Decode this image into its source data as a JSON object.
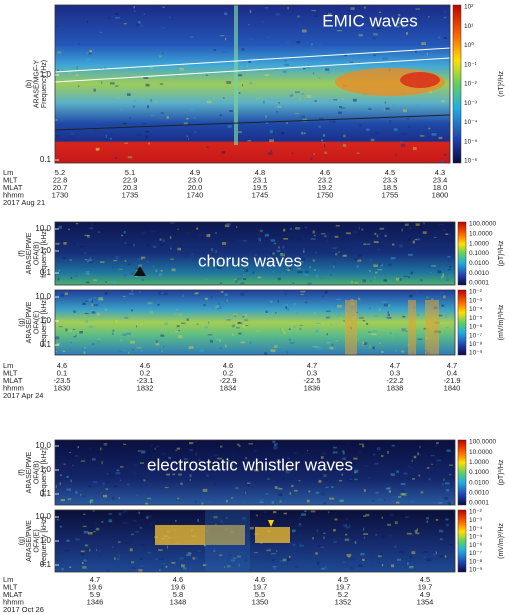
{
  "panels": [
    {
      "label_lines": [
        "(b)",
        "ARASE/MGF-Y",
        "Frequency (Hz)"
      ],
      "title": "EMIC waves",
      "yticks": [
        "1.0",
        "0.1"
      ],
      "colorbar": {
        "labels": [
          "10²",
          "10¹",
          "10⁰",
          "10⁻¹",
          "10⁻²",
          "10⁻³",
          "10⁻⁴",
          "10⁻⁵",
          "10⁻⁶"
        ],
        "unit": "(nT)²/Hz"
      }
    },
    {
      "label_lines": [
        "(f)",
        "ARASE/PWE",
        "OFA(B)",
        "frequency [kHz]"
      ],
      "title": "chorus waves",
      "yticks": [
        "10.0",
        "1.0",
        "0.1"
      ],
      "colorbar": {
        "labels": [
          "100.0000",
          "10.0000",
          "1.0000",
          "0.1000",
          "0.0100",
          "0.0010",
          "0.0001"
        ],
        "unit": "(pT)²/Hz"
      }
    },
    {
      "label_lines": [
        "(g)",
        "ARASE/PWE",
        "OFA(E)",
        "frequency [kHz]"
      ],
      "yticks": [
        "10.0",
        "1.0",
        "0.1"
      ],
      "colorbar": {
        "labels": [
          "10⁻²",
          "10⁻³",
          "10⁻⁴",
          "10⁻⁵",
          "10⁻⁶",
          "10⁻⁷",
          "10⁻⁸",
          "10⁻⁹"
        ],
        "unit": "(mV/m)²/Hz"
      }
    },
    {
      "label_lines": [
        "(f)",
        "ARASE/PWE",
        "OFA(B)",
        "frequency [kHz]"
      ],
      "title": "electrostatic whistler waves",
      "yticks": [
        "10.0",
        "1.0",
        "0.1"
      ],
      "colorbar": {
        "labels": [
          "100.0000",
          "10.0000",
          "1.0000",
          "0.1000",
          "0.0100",
          "0.0010",
          "0.0001"
        ],
        "unit": "(pT)²/Hz"
      }
    },
    {
      "label_lines": [
        "(g)",
        "ARASE/PWE",
        "OFA(E)",
        "frequency [kHz]"
      ],
      "yticks": [
        "10.0",
        "1.0",
        "0.1"
      ],
      "colorbar": {
        "labels": [
          "10⁻²",
          "10⁻³",
          "10⁻⁴",
          "10⁻⁵",
          "10⁻⁶",
          "10⁻⁷",
          "10⁻⁸",
          "10⁻⁹"
        ],
        "unit": "(mV/m)²/Hz"
      }
    }
  ],
  "ephemeris": [
    {
      "rows": [
        {
          "label": "Lm",
          "values": [
            "5.2",
            "5.1",
            "4.9",
            "4.8",
            "4.6",
            "4.5",
            "4.3"
          ]
        },
        {
          "label": "MLT",
          "values": [
            "22.8",
            "22.9",
            "23.0",
            "23.1",
            "23.2",
            "23.3",
            "23.4"
          ]
        },
        {
          "label": "MLAT",
          "values": [
            "20.7",
            "20.3",
            "20.0",
            "19.5",
            "19.2",
            "18.5",
            "18.0"
          ]
        },
        {
          "label": "hhmm",
          "values": [
            "1730",
            "1735",
            "1740",
            "1745",
            "1750",
            "1755",
            "1800"
          ]
        }
      ],
      "date": "2017 Aug 21"
    },
    {
      "rows": [
        {
          "label": "Lm",
          "values": [
            "4.6",
            "4.6",
            "4.6",
            "4.7",
            "4.7",
            "4.7"
          ]
        },
        {
          "label": "MLT",
          "values": [
            "0.1",
            "0.2",
            "0.2",
            "0.3",
            "0.3",
            "0.4"
          ]
        },
        {
          "label": "MLAT",
          "values": [
            "-23.5",
            "-23.1",
            "-22.9",
            "-22.5",
            "-22.2",
            "-21.9"
          ]
        },
        {
          "label": "hhmm",
          "values": [
            "1830",
            "1832",
            "1834",
            "1836",
            "1838",
            "1840"
          ]
        }
      ],
      "date": "2017 Apr 24"
    },
    {
      "rows": [
        {
          "label": "Lm",
          "values": [
            "4.7",
            "4.6",
            "4.6",
            "4.5",
            "4.5"
          ]
        },
        {
          "label": "MLT",
          "values": [
            "19.6",
            "19.6",
            "19.7",
            "19.7",
            "19.7"
          ]
        },
        {
          "label": "MLAT",
          "values": [
            "5.9",
            "5.8",
            "5.5",
            "5.2",
            "4.9"
          ]
        },
        {
          "label": "hhmm",
          "values": [
            "1346",
            "1348",
            "1350",
            "1352",
            "1354"
          ]
        }
      ],
      "date": "2017 Oct 26"
    }
  ]
}
